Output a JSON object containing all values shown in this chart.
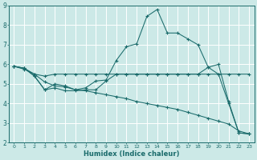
{
  "xlabel": "Humidex (Indice chaleur)",
  "xlim": [
    -0.5,
    23.5
  ],
  "ylim": [
    2,
    9
  ],
  "yticks": [
    2,
    3,
    4,
    5,
    6,
    7,
    8,
    9
  ],
  "xticks": [
    0,
    1,
    2,
    3,
    4,
    5,
    6,
    7,
    8,
    9,
    10,
    11,
    12,
    13,
    14,
    15,
    16,
    17,
    18,
    19,
    20,
    21,
    22,
    23
  ],
  "background_color": "#cce9e7",
  "grid_color": "#ffffff",
  "line_color": "#1a6b6b",
  "lines": [
    {
      "x": [
        0,
        1,
        2,
        3,
        4,
        5,
        6,
        7,
        8,
        9,
        10,
        11,
        12,
        13,
        14,
        15,
        16,
        17,
        18,
        19,
        20,
        21,
        22,
        23
      ],
      "y": [
        5.9,
        5.8,
        5.4,
        4.7,
        5.0,
        4.9,
        4.7,
        4.8,
        5.15,
        5.2,
        6.2,
        6.9,
        7.05,
        8.45,
        8.8,
        7.6,
        7.6,
        7.3,
        7.0,
        5.85,
        6.0,
        4.1,
        2.5,
        2.45
      ]
    },
    {
      "x": [
        0,
        1,
        2,
        3,
        4,
        5,
        6,
        7,
        8,
        9,
        10,
        11,
        12,
        13,
        14,
        15,
        16,
        17,
        18,
        19,
        20,
        21,
        22,
        23
      ],
      "y": [
        5.9,
        5.8,
        5.5,
        5.4,
        5.5,
        5.5,
        5.5,
        5.5,
        5.5,
        5.5,
        5.5,
        5.5,
        5.5,
        5.5,
        5.5,
        5.5,
        5.5,
        5.5,
        5.5,
        5.85,
        5.5,
        5.5,
        5.5,
        5.5
      ]
    },
    {
      "x": [
        0,
        1,
        2,
        3,
        4,
        5,
        6,
        7,
        8,
        9,
        10,
        11,
        12,
        13,
        14,
        15,
        16,
        17,
        18,
        19,
        20,
        21,
        22,
        23
      ],
      "y": [
        5.9,
        5.8,
        5.4,
        4.7,
        4.8,
        4.65,
        4.65,
        4.7,
        4.7,
        5.15,
        5.5,
        5.5,
        5.5,
        5.5,
        5.5,
        5.5,
        5.5,
        5.5,
        5.5,
        5.5,
        5.5,
        4.0,
        2.5,
        2.45
      ]
    },
    {
      "x": [
        0,
        1,
        2,
        3,
        4,
        5,
        6,
        7,
        8,
        9,
        10,
        11,
        12,
        13,
        14,
        15,
        16,
        17,
        18,
        19,
        20,
        21,
        22,
        23
      ],
      "y": [
        5.9,
        5.75,
        5.5,
        5.1,
        4.9,
        4.85,
        4.7,
        4.65,
        4.55,
        4.45,
        4.35,
        4.25,
        4.1,
        4.0,
        3.9,
        3.8,
        3.7,
        3.55,
        3.4,
        3.25,
        3.1,
        2.95,
        2.6,
        2.45
      ]
    }
  ]
}
